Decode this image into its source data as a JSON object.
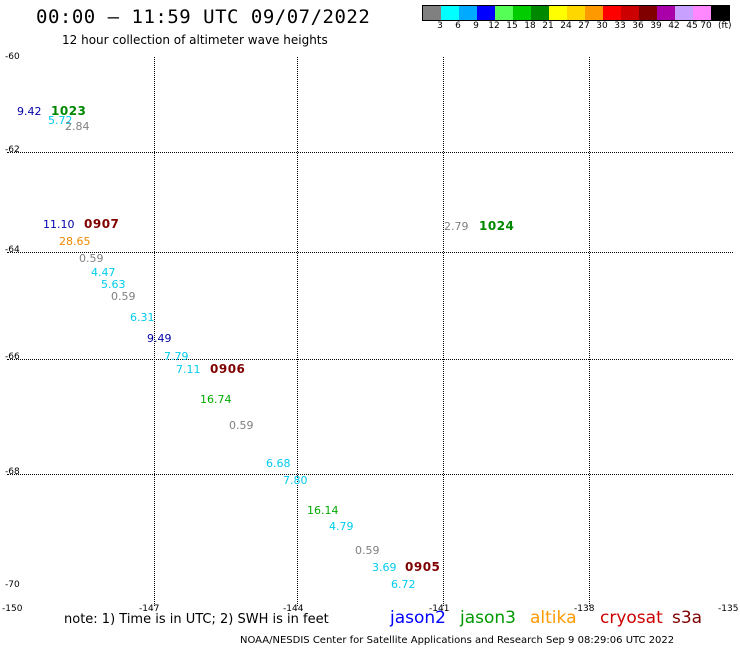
{
  "header": {
    "title": "00:00 – 11:59 UTC 09/07/2022",
    "subtitle": "12 hour collection of altimeter wave heights"
  },
  "colorbar": {
    "colors": [
      "#808080",
      "#00ffff",
      "#00aaff",
      "#0000ff",
      "#55ff55",
      "#00cc00",
      "#008800",
      "#ffff00",
      "#ffd700",
      "#ff9900",
      "#ff0000",
      "#cc0000",
      "#800000",
      "#aa00aa",
      "#c8a0ff",
      "#ff88ff",
      "#000000"
    ],
    "labels": [
      "3",
      "6",
      "9",
      "12",
      "15",
      "18",
      "21",
      "24",
      "27",
      "30",
      "33",
      "36",
      "39",
      "42",
      "45",
      "70"
    ],
    "unit": "(ft)"
  },
  "axes": {
    "lat_labels": [
      "-60",
      "-62",
      "-64",
      "-66",
      "-68",
      "-70"
    ],
    "lon_labels": [
      "-150",
      "-147",
      "-144",
      "-141",
      "-138",
      "-135"
    ]
  },
  "observations": [
    {
      "text": "9.42",
      "color": "#0000aa"
    },
    {
      "text": "5.72",
      "color": "#00ccee"
    },
    {
      "text": "2.84",
      "color": "#808080"
    },
    {
      "text": "11.10",
      "color": "#0000aa"
    },
    {
      "text": "28.65",
      "color": "#ee8800"
    },
    {
      "text": "0.59",
      "color": "#808080"
    },
    {
      "text": "4.47",
      "color": "#00ccee"
    },
    {
      "text": "5.63",
      "color": "#00ccee"
    },
    {
      "text": "0.59",
      "color": "#808080"
    },
    {
      "text": "6.31",
      "color": "#00ccee"
    },
    {
      "text": "9.49",
      "color": "#0000aa"
    },
    {
      "text": "7.79",
      "color": "#00ccee"
    },
    {
      "text": "7.11",
      "color": "#00ccee"
    },
    {
      "text": "16.74",
      "color": "#00aa00"
    },
    {
      "text": "0.59",
      "color": "#808080"
    },
    {
      "text": "6.68",
      "color": "#00ccee"
    },
    {
      "text": "7.80",
      "color": "#00ccee"
    },
    {
      "text": "16.14",
      "color": "#00aa00"
    },
    {
      "text": "4.79",
      "color": "#00ccee"
    },
    {
      "text": "0.59",
      "color": "#808080"
    },
    {
      "text": "3.69",
      "color": "#00ccee"
    },
    {
      "text": "6.72",
      "color": "#00ccee"
    },
    {
      "text": "2.79",
      "color": "#808080"
    }
  ],
  "date_labels": [
    {
      "text": "1023",
      "color": "#008800"
    },
    {
      "text": "0907",
      "color": "#800000"
    },
    {
      "text": "0906",
      "color": "#800000"
    },
    {
      "text": "0905",
      "color": "#800000"
    },
    {
      "text": "1024",
      "color": "#008800"
    }
  ],
  "footer": {
    "note": "note: 1) Time is in UTC; 2) SWH is in feet",
    "satellites": [
      {
        "name": "jason2",
        "color": "#0000ff"
      },
      {
        "name": "jason3",
        "color": "#009900"
      },
      {
        "name": "altika",
        "color": "#ff9900"
      },
      {
        "name": "cryosat",
        "color": "#cc0000"
      },
      {
        "name": "s3a",
        "color": "#800000"
      }
    ],
    "credit": "NOAA/NESDIS Center for Satellite Applications and Research    Sep  9 08:29:06 UTC 2022"
  }
}
